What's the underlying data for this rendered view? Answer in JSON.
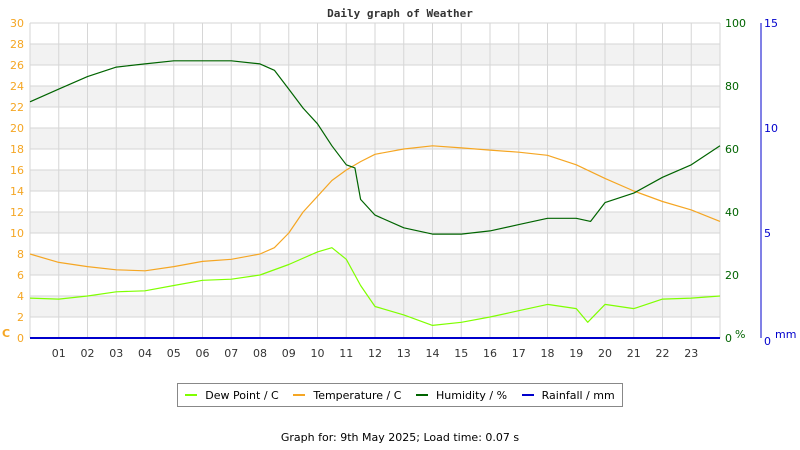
{
  "chart_data": {
    "type": "line",
    "title": "Daily graph of Weather",
    "xlabel": "",
    "x_ticks": [
      "01",
      "02",
      "03",
      "04",
      "05",
      "06",
      "07",
      "08",
      "09",
      "10",
      "11",
      "12",
      "13",
      "14",
      "15",
      "16",
      "17",
      "18",
      "19",
      "20",
      "21",
      "22",
      "23"
    ],
    "x_range_hours": [
      0,
      24
    ],
    "axes": {
      "left": {
        "label": "C",
        "ylim": [
          0,
          30
        ],
        "ticks": [
          0,
          2,
          4,
          6,
          8,
          10,
          12,
          14,
          16,
          18,
          20,
          22,
          24,
          26,
          28,
          30
        ],
        "color": "#f5a623"
      },
      "right_humidity": {
        "label": "%",
        "ylim": [
          0,
          100
        ],
        "ticks": [
          0,
          20,
          40,
          60,
          80,
          100
        ],
        "color": "#006400"
      },
      "right_rain": {
        "label": "mm",
        "ylim": [
          0,
          15
        ],
        "ticks": [
          0,
          5,
          10,
          15
        ],
        "color": "#0000cc"
      }
    },
    "grid": true,
    "legend_position": "bottom",
    "series": [
      {
        "name": "Dew Point / C",
        "axis": "left",
        "color": "#7fff00",
        "x": [
          0,
          1,
          2,
          3,
          4,
          5,
          6,
          7,
          8,
          9,
          10,
          10.5,
          11,
          11.5,
          12,
          13,
          14,
          15,
          16,
          17,
          18,
          19,
          19.4,
          20,
          21,
          22,
          23,
          24
        ],
        "values": [
          3.8,
          3.7,
          4.0,
          4.4,
          4.5,
          5.0,
          5.5,
          5.6,
          6.0,
          7.0,
          8.2,
          8.6,
          7.5,
          5.0,
          3.0,
          2.2,
          1.2,
          1.5,
          2.0,
          2.6,
          3.2,
          2.8,
          1.5,
          3.2,
          2.8,
          3.7,
          3.8,
          4.0
        ]
      },
      {
        "name": "Temperature / C",
        "axis": "left",
        "color": "#f5a623",
        "x": [
          0,
          1,
          2,
          3,
          4,
          5,
          6,
          7,
          8,
          8.5,
          9,
          9.5,
          10,
          10.5,
          11,
          11.5,
          12,
          13,
          14,
          15,
          16,
          17,
          18,
          19,
          20,
          21,
          22,
          23,
          24
        ],
        "values": [
          8.0,
          7.2,
          6.8,
          6.5,
          6.4,
          6.8,
          7.3,
          7.5,
          8.0,
          8.6,
          10.0,
          12.0,
          13.5,
          15.0,
          16.0,
          16.8,
          17.5,
          18.0,
          18.3,
          18.1,
          17.9,
          17.7,
          17.4,
          16.5,
          15.2,
          14.0,
          13.0,
          12.2,
          11.1
        ]
      },
      {
        "name": "Humidity / %",
        "axis": "right_humidity",
        "color": "#006400",
        "x": [
          0,
          0.5,
          1,
          2,
          3,
          4,
          5,
          6,
          7,
          8,
          8.5,
          9,
          9.5,
          10,
          10.5,
          11,
          11.3,
          11.5,
          12,
          13,
          14,
          15,
          16,
          17,
          18,
          19,
          19.5,
          20,
          21,
          22,
          23,
          24
        ],
        "values": [
          75,
          77,
          79,
          83,
          86,
          87,
          88,
          88,
          88,
          87,
          85,
          79,
          73,
          68,
          61,
          55,
          54,
          44,
          39,
          35,
          33,
          33,
          34,
          36,
          38,
          38,
          37,
          43,
          46,
          51,
          55,
          61
        ]
      },
      {
        "name": "Rainfall / mm",
        "axis": "right_rain",
        "color": "#0000cc",
        "x": [
          0,
          24
        ],
        "values": [
          0,
          0
        ]
      }
    ]
  },
  "legend": [
    {
      "label": "Dew Point / C",
      "color": "#7fff00"
    },
    {
      "label": "Temperature / C",
      "color": "#f5a623"
    },
    {
      "label": "Humidity / %",
      "color": "#006400"
    },
    {
      "label": "Rainfall / mm",
      "color": "#0000cc"
    }
  ],
  "footer": "Graph for: 9th May 2025; Load time: 0.07 s"
}
